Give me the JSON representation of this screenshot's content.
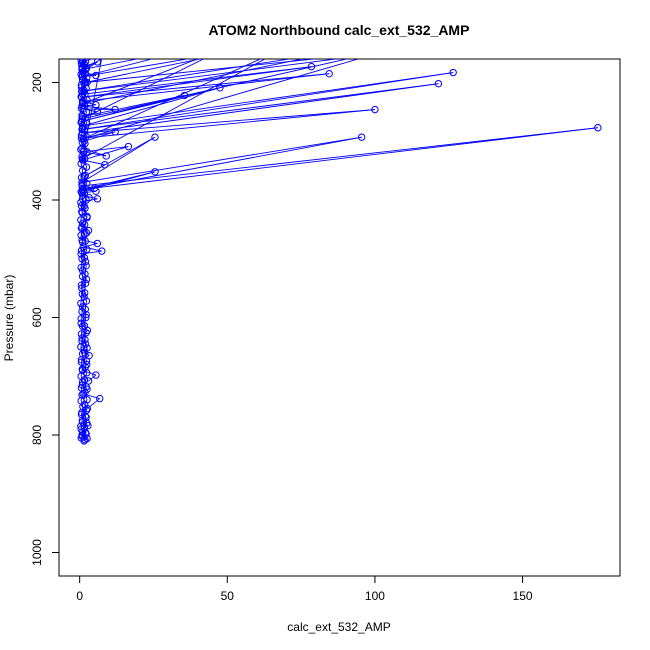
{
  "chart_data": {
    "type": "line",
    "title": "ATOM2 Northbound calc_ext_532_AMP",
    "xlabel": "calc_ext_532_AMP",
    "ylabel": "Pressure (mbar)",
    "xlim": [
      -7,
      183
    ],
    "ylim": [
      1040,
      160
    ],
    "y_inverted": true,
    "x_ticks": [
      0,
      50,
      100,
      150
    ],
    "y_ticks": [
      200,
      400,
      600,
      800,
      1000
    ],
    "grid": false,
    "legend": "none",
    "series": [
      {
        "color": "#0000ff",
        "marker": "open-circle",
        "points": [
          [
            1.5,
            810
          ],
          [
            2.5,
            806
          ],
          [
            0.8,
            802
          ],
          [
            2.0,
            796
          ],
          [
            0.5,
            790
          ],
          [
            2.8,
            784
          ],
          [
            1.0,
            778
          ],
          [
            2.2,
            770
          ],
          [
            0.7,
            762
          ],
          [
            2.6,
            755
          ],
          [
            6.8,
            738
          ],
          [
            1.2,
            730
          ],
          [
            2.5,
            722
          ],
          [
            0.9,
            715
          ],
          [
            3.0,
            708
          ],
          [
            5.5,
            698
          ],
          [
            1.0,
            690
          ],
          [
            2.4,
            680
          ],
          [
            0.6,
            672
          ],
          [
            3.2,
            665
          ],
          [
            1.5,
            655
          ],
          [
            2.0,
            645
          ],
          [
            0.8,
            635
          ],
          [
            2.6,
            622
          ],
          [
            0.5,
            610
          ],
          [
            2.2,
            595
          ],
          [
            1.0,
            582
          ],
          [
            1.5,
            565
          ],
          [
            0.7,
            550
          ],
          [
            2.3,
            535
          ],
          [
            1.0,
            520
          ],
          [
            2.0,
            505
          ],
          [
            0.5,
            492
          ],
          [
            7.5,
            487
          ],
          [
            1.2,
            480
          ],
          [
            6.0,
            474
          ],
          [
            0.8,
            468
          ],
          [
            1.8,
            458
          ],
          [
            0.6,
            448
          ],
          [
            3.0,
            452
          ],
          [
            1.0,
            440
          ],
          [
            2.5,
            430
          ],
          [
            0.7,
            420
          ],
          [
            1.5,
            410
          ],
          [
            0.4,
            404
          ],
          [
            6.0,
            398
          ],
          [
            1.0,
            392
          ],
          [
            3.2,
            396
          ],
          [
            0.8,
            388
          ],
          [
            5.5,
            385
          ],
          [
            1.0,
            382
          ],
          [
            25.5,
            352
          ],
          [
            1.2,
            385
          ],
          [
            5.0,
            380
          ],
          [
            0.8,
            376
          ],
          [
            175.5,
            277
          ],
          [
            1.0,
            382
          ],
          [
            95.5,
            293
          ],
          [
            0.8,
            370
          ],
          [
            25.5,
            293
          ],
          [
            1.5,
            360
          ],
          [
            8.5,
            340
          ],
          [
            1.0,
            332
          ],
          [
            16.5,
            309
          ],
          [
            1.2,
            318
          ],
          [
            9.0,
            325
          ],
          [
            0.8,
            312
          ],
          [
            1.5,
            300
          ],
          [
            12.0,
            284
          ],
          [
            0.6,
            295
          ],
          [
            100.0,
            246
          ],
          [
            1.0,
            286
          ],
          [
            121.5,
            202
          ],
          [
            0.8,
            280
          ],
          [
            126.5,
            183
          ],
          [
            1.0,
            274
          ],
          [
            47.5,
            209
          ],
          [
            0.7,
            266
          ],
          [
            35.5,
            222
          ],
          [
            1.0,
            258
          ],
          [
            6.0,
            250
          ],
          [
            1.2,
            245
          ],
          [
            12.0,
            246
          ],
          [
            0.8,
            240
          ],
          [
            5.5,
            238
          ],
          [
            1.0,
            232
          ],
          [
            84.5,
            185
          ],
          [
            0.7,
            225
          ],
          [
            78.5,
            173
          ],
          [
            1.0,
            220
          ],
          [
            1.5,
            214
          ],
          [
            0.6,
            208
          ],
          [
            2.5,
            200
          ],
          [
            1.0,
            195
          ],
          [
            0.8,
            190
          ],
          [
            5.5,
            188
          ],
          [
            1.0,
            182
          ],
          [
            2.0,
            178
          ],
          [
            6.0,
            165
          ],
          [
            0.8,
            174
          ],
          [
            1.5,
            168
          ],
          [
            0.5,
            162
          ]
        ]
      },
      {
        "color": "#0000ff",
        "marker": "open-circle",
        "points": [
          [
            0.5,
            805
          ],
          [
            0.8,
            800
          ],
          [
            1.0,
            795
          ],
          [
            0.4,
            785
          ],
          [
            0.9,
            775
          ],
          [
            0.6,
            765
          ],
          [
            1.1,
            752
          ],
          [
            0.5,
            742
          ],
          [
            0.8,
            732
          ],
          [
            0.6,
            720
          ],
          [
            1.0,
            710
          ],
          [
            0.5,
            700
          ],
          [
            0.9,
            688
          ],
          [
            0.6,
            676
          ],
          [
            1.0,
            662
          ],
          [
            0.4,
            650
          ],
          [
            0.8,
            640
          ],
          [
            0.6,
            628
          ],
          [
            1.0,
            615
          ],
          [
            0.5,
            602
          ],
          [
            0.8,
            590
          ],
          [
            0.4,
            576
          ],
          [
            0.9,
            560
          ],
          [
            0.6,
            545
          ],
          [
            1.0,
            530
          ],
          [
            0.5,
            515
          ],
          [
            0.8,
            500
          ],
          [
            0.6,
            486
          ],
          [
            1.0,
            472
          ],
          [
            0.5,
            460
          ],
          [
            0.8,
            446
          ],
          [
            0.4,
            434
          ],
          [
            0.9,
            422
          ],
          [
            0.6,
            410
          ],
          [
            1.0,
            398
          ],
          [
            0.5,
            386
          ],
          [
            0.8,
            374
          ],
          [
            0.6,
            362
          ],
          [
            1.0,
            350
          ],
          [
            0.5,
            338
          ],
          [
            0.8,
            326
          ],
          [
            0.4,
            314
          ],
          [
            0.9,
            302
          ],
          [
            0.6,
            290
          ],
          [
            1.0,
            278
          ],
          [
            0.5,
            268
          ],
          [
            0.8,
            256
          ],
          [
            0.6,
            244
          ],
          [
            1.0,
            234
          ],
          [
            0.5,
            224
          ],
          [
            0.8,
            214
          ],
          [
            0.6,
            204
          ],
          [
            1.0,
            196
          ],
          [
            0.5,
            186
          ],
          [
            0.8,
            176
          ],
          [
            0.6,
            168
          ],
          [
            1.0,
            162
          ]
        ]
      },
      {
        "color": "#0000ff",
        "marker": "open-circle",
        "points": [
          [
            1.8,
            808
          ],
          [
            2.2,
            798
          ],
          [
            1.6,
            788
          ],
          [
            2.4,
            780
          ],
          [
            1.9,
            768
          ],
          [
            2.3,
            758
          ],
          [
            1.7,
            748
          ],
          [
            2.5,
            740
          ],
          [
            1.8,
            728
          ],
          [
            2.2,
            718
          ],
          [
            1.6,
            706
          ],
          [
            2.4,
            694
          ],
          [
            1.9,
            684
          ],
          [
            2.3,
            674
          ],
          [
            1.7,
            660
          ],
          [
            2.5,
            652
          ],
          [
            1.8,
            638
          ],
          [
            2.2,
            626
          ],
          [
            1.6,
            614
          ],
          [
            2.1,
            600
          ],
          [
            1.9,
            586
          ],
          [
            2.3,
            572
          ],
          [
            1.7,
            558
          ],
          [
            2.0,
            542
          ],
          [
            1.8,
            526
          ],
          [
            2.2,
            512
          ],
          [
            1.6,
            498
          ],
          [
            2.4,
            484
          ],
          [
            1.9,
            470
          ],
          [
            2.3,
            456
          ],
          [
            1.7,
            442
          ],
          [
            2.5,
            428
          ],
          [
            1.8,
            414
          ],
          [
            2.2,
            400
          ],
          [
            1.6,
            388
          ],
          [
            2.4,
            372
          ],
          [
            1.9,
            358
          ],
          [
            2.3,
            344
          ],
          [
            1.7,
            330
          ],
          [
            2.5,
            318
          ],
          [
            1.8,
            304
          ],
          [
            2.2,
            292
          ],
          [
            1.6,
            280
          ],
          [
            2.4,
            270
          ],
          [
            1.9,
            260
          ],
          [
            2.3,
            250
          ],
          [
            1.7,
            240
          ],
          [
            2.5,
            230
          ],
          [
            1.8,
            220
          ],
          [
            2.2,
            210
          ],
          [
            1.6,
            200
          ],
          [
            2.4,
            192
          ],
          [
            1.9,
            184
          ],
          [
            2.3,
            176
          ],
          [
            1.7,
            170
          ],
          [
            2.0,
            164
          ]
        ]
      },
      {
        "color": "#0000ff",
        "marker": "open-circle",
        "points": [
          [
            0.9,
            165
          ],
          [
            13.0,
            145
          ],
          [
            0.8,
            178
          ],
          [
            40.0,
            140
          ],
          [
            1.0,
            190
          ],
          [
            60.0,
            140
          ],
          [
            2.0,
            200
          ],
          [
            118.0,
            140
          ],
          [
            0.7,
            215
          ],
          [
            90.0,
            145
          ],
          [
            1.0,
            236
          ],
          [
            50.0,
            140
          ],
          [
            0.8,
            262
          ],
          [
            108.0,
            140
          ],
          [
            1.2,
            296
          ],
          [
            70.0,
            140
          ],
          [
            0.9,
            330
          ],
          [
            8.0,
            145
          ]
        ]
      }
    ]
  }
}
